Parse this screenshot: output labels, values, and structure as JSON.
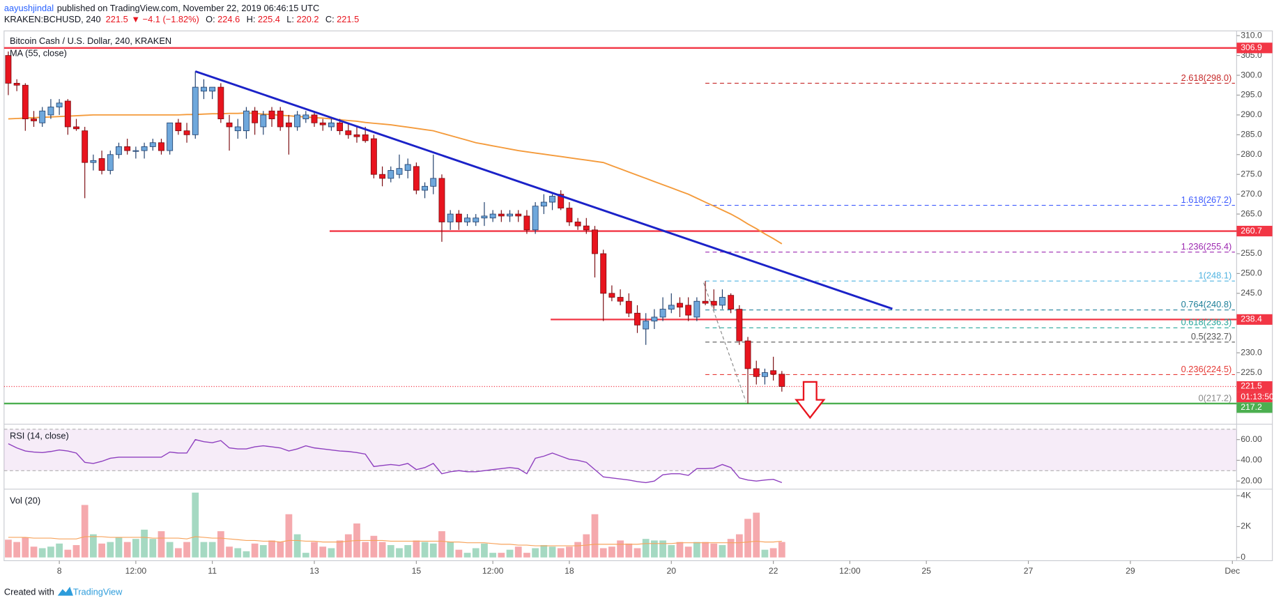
{
  "chart_data": {
    "type": "candlestick",
    "header": {
      "author": "aayushjindal",
      "published": "published on TradingView.com, November 22, 2019 06:46:15 UTC",
      "symbol": "KRAKEN:BCHUSD, 240",
      "last": 221.5,
      "arrow": "▼",
      "change": "−4.1 (−1.82%)",
      "ohlc": [
        {
          "label": "O:",
          "value": 224.6
        },
        {
          "label": "H:",
          "value": 225.4
        },
        {
          "label": "L:",
          "value": 220.2
        },
        {
          "label": "C:",
          "value": 221.5
        }
      ]
    },
    "title": "Bitcoin Cash / U.S. Dollar, 240, KRAKEN",
    "footer": {
      "created": "Created with",
      "brand": "TradingView"
    },
    "xlim": [
      -0.5,
      144.5
    ],
    "xticks": [
      {
        "value": 6,
        "label": "8"
      },
      {
        "value": 15,
        "label": "12:00"
      },
      {
        "value": 24,
        "label": "11"
      },
      {
        "value": 36,
        "label": "13"
      },
      {
        "value": 48,
        "label": "15"
      },
      {
        "value": 57,
        "label": "12:00"
      },
      {
        "value": 66,
        "label": "18"
      },
      {
        "value": 78,
        "label": "20"
      },
      {
        "value": 90,
        "label": "22"
      },
      {
        "value": 99,
        "label": "12:00"
      },
      {
        "value": 108,
        "label": "25"
      },
      {
        "value": 120,
        "label": "27"
      },
      {
        "value": 132,
        "label": "29"
      },
      {
        "value": 144,
        "label": "Dec"
      }
    ],
    "ylim": [
      212.4,
      311.2
    ],
    "yticks": [
      {
        "value": 310,
        "label": "310.0"
      },
      {
        "value": 305,
        "label": "305.0"
      },
      {
        "value": 300,
        "label": "300.0"
      },
      {
        "value": 295,
        "label": "295.0"
      },
      {
        "value": 290,
        "label": "290.0"
      },
      {
        "value": 285,
        "label": "285.0"
      },
      {
        "value": 280,
        "label": "280.0"
      },
      {
        "value": 275,
        "label": "275.0"
      },
      {
        "value": 270,
        "label": "270.0"
      },
      {
        "value": 265,
        "label": "265.0"
      },
      {
        "value": 255,
        "label": "255.0"
      },
      {
        "value": 250,
        "label": "250.0"
      },
      {
        "value": 245,
        "label": "245.0"
      },
      {
        "value": 230,
        "label": "230.0"
      },
      {
        "value": 225,
        "label": "225.0"
      }
    ],
    "grid": false,
    "up_color": "#6fa8dc",
    "down_color": "#e8141e",
    "candles": {
      "open": [
        305,
        298,
        297.5,
        289,
        288,
        290,
        292,
        293.5,
        287,
        286,
        278,
        279,
        276,
        280,
        282,
        281,
        281,
        282,
        283,
        281,
        288,
        286,
        285,
        296,
        296,
        297,
        288,
        286,
        286,
        291,
        287,
        291,
        291,
        288,
        287,
        289,
        290,
        288,
        287,
        288,
        286,
        285,
        285,
        284,
        275,
        274,
        275,
        276,
        277,
        271,
        272,
        274,
        263,
        265,
        263,
        263,
        264,
        264,
        265,
        264.5,
        265,
        264.5,
        261,
        267,
        268,
        270,
        266.5,
        263,
        262,
        261,
        255,
        245,
        244,
        243,
        240,
        236,
        238,
        239,
        241,
        242.5,
        242,
        239,
        243,
        243,
        242,
        244.5,
        241,
        233,
        226,
        224,
        225.5,
        224.6
      ],
      "high": [
        306,
        299,
        298,
        291,
        292,
        294,
        294,
        294,
        289,
        287,
        280,
        281,
        281,
        283,
        284,
        282,
        283,
        284,
        284,
        288,
        289,
        288,
        301,
        299,
        297,
        298,
        290,
        289,
        292,
        292,
        291,
        292,
        292,
        290,
        291,
        291,
        291,
        289,
        289,
        289,
        288,
        287,
        287,
        285,
        277,
        277,
        280,
        279,
        278,
        273,
        280,
        275,
        266,
        266,
        265,
        265,
        268,
        266,
        266,
        266,
        266,
        266,
        268,
        270,
        270,
        271,
        268,
        264,
        264,
        262,
        256,
        247,
        246,
        245,
        242,
        240,
        241,
        244,
        245,
        244,
        244,
        244,
        248.1,
        246,
        246,
        245,
        242,
        234,
        228,
        226,
        229,
        225.4
      ],
      "low": [
        295,
        296,
        286,
        287,
        287,
        289,
        290,
        285,
        286,
        269,
        276,
        275,
        275,
        279,
        280,
        279,
        279,
        281,
        280,
        280,
        285,
        283,
        284,
        294,
        294,
        288,
        281,
        284,
        284,
        285,
        285,
        287,
        286,
        280,
        286,
        288,
        287,
        286,
        286,
        285,
        284,
        283,
        283,
        274,
        272,
        273,
        274,
        274,
        270,
        269,
        270,
        258,
        261,
        261,
        262,
        262,
        262,
        263,
        263,
        263,
        263,
        260,
        260,
        265,
        266,
        266,
        262,
        261,
        260,
        249,
        238,
        243,
        242,
        239,
        235,
        232,
        236,
        238,
        240,
        239,
        238,
        238,
        242,
        241,
        241,
        240,
        232,
        217.2,
        222,
        222,
        223,
        220.2
      ],
      "close": [
        298,
        297.5,
        289,
        288.5,
        291,
        292,
        293,
        287,
        286.5,
        278,
        278.5,
        276,
        280,
        282,
        281,
        281,
        282,
        283,
        281,
        288,
        286,
        285,
        297,
        297,
        297,
        289,
        287,
        287,
        291,
        288,
        290,
        289,
        287,
        287,
        290,
        290,
        288,
        287.5,
        288,
        286,
        285,
        284.5,
        283.5,
        275,
        274,
        276,
        276.5,
        277.5,
        271,
        272,
        274,
        263,
        265,
        263,
        264,
        264,
        264.5,
        265,
        264.5,
        265,
        264.5,
        261,
        267,
        268,
        269.5,
        266.5,
        263,
        262,
        261,
        255,
        245,
        244,
        243,
        240,
        237,
        238,
        239,
        241,
        242,
        241.5,
        239.5,
        243,
        242.5,
        242,
        244,
        241,
        233,
        226,
        224,
        225,
        224.6,
        221.5
      ]
    },
    "ma": {
      "name": "MA (55, close)",
      "color": "#f49a3a",
      "values": [
        289,
        289.1,
        289.2,
        289.3,
        289.4,
        289.5,
        289.6,
        289.7,
        289.8,
        289.9,
        290,
        290,
        290,
        290,
        290,
        290,
        290,
        290,
        290,
        290,
        290,
        290.1,
        290.1,
        290.2,
        290.3,
        290.3,
        290.4,
        290.4,
        290.5,
        290.4,
        290.2,
        290.1,
        289.9,
        289.8,
        289.6,
        289.5,
        289.3,
        289.2,
        289,
        288.8,
        288.6,
        288.4,
        288.1,
        287.9,
        287.7,
        287.5,
        287.2,
        286.9,
        286.6,
        286.3,
        286,
        285.4,
        284.8,
        284.2,
        283.6,
        283,
        282.6,
        282.2,
        281.8,
        281.4,
        281,
        280.7,
        280.4,
        280.1,
        279.8,
        279.5,
        279.2,
        278.9,
        278.6,
        278.3,
        278,
        277.2,
        276.4,
        275.6,
        274.8,
        274,
        273.2,
        272.4,
        271.6,
        270.8,
        270,
        269,
        268,
        267,
        266,
        265,
        263.8,
        262.5,
        261.3,
        260,
        258.8,
        257.5
      ]
    },
    "trendline": {
      "color": "#1b22c8",
      "x": [
        22,
        104
      ],
      "y": [
        301.0,
        241.1
      ]
    },
    "levels": [
      {
        "value": 306.9,
        "color": "#f23645",
        "x": -0.5
      },
      {
        "value": 260.7,
        "color": "#f23645",
        "x": 37.8
      },
      {
        "value": 238.4,
        "color": "#f23645",
        "x": 63.8
      },
      {
        "value": 217.2,
        "color": "#4caf50",
        "x": -0.5
      }
    ],
    "current_price": {
      "value": 221.5,
      "color": "#f23645",
      "countdown": "01:13:50"
    },
    "fib": {
      "x": [
        82,
        144.3
      ],
      "levels": [
        {
          "label": "2.618(298.0)",
          "value": 298.0,
          "color": "#c62828"
        },
        {
          "label": "1.618(267.2)",
          "value": 267.2,
          "color": "#3d5afe"
        },
        {
          "label": "1.236(255.4)",
          "value": 255.4,
          "color": "#9c27b0"
        },
        {
          "label": "1(248.1)",
          "value": 248.1,
          "color": "#4fb3e0"
        },
        {
          "label": "0.764(240.8)",
          "value": 240.8,
          "color": "#1e7f99"
        },
        {
          "label": "0.618(236.3)",
          "value": 236.3,
          "color": "#26a69a"
        },
        {
          "label": "0.5(232.7)",
          "value": 232.7,
          "color": "#555555"
        },
        {
          "label": "0.236(224.5)",
          "value": 224.5,
          "color": "#e53935"
        },
        {
          "label": "0(217.2)",
          "value": 217.2,
          "color": "#888888"
        }
      ]
    },
    "rsi": {
      "name": "RSI (14, close)",
      "color": "#8e3fbf",
      "ylim": [
        13.7,
        73.3
      ],
      "band": [
        30,
        70
      ],
      "yticks": [
        {
          "value": 60,
          "label": "60.00"
        },
        {
          "value": 40,
          "label": "40.00"
        },
        {
          "value": 20,
          "label": "20.00"
        }
      ],
      "values": [
        56,
        52,
        49,
        48,
        47.5,
        48.5,
        50,
        49,
        47,
        38,
        37,
        39,
        42,
        43,
        43,
        43,
        43,
        43,
        43,
        48,
        47,
        47,
        60,
        58,
        57,
        59,
        52,
        51,
        51,
        53,
        54,
        53,
        52,
        49,
        51,
        54,
        52,
        51,
        50,
        49,
        48.5,
        47.5,
        46,
        34,
        35,
        36,
        35,
        37,
        31,
        33,
        37,
        27,
        29,
        30,
        29,
        29,
        30,
        31,
        32,
        33,
        32,
        27,
        42,
        44,
        47,
        44,
        41,
        40,
        38,
        31,
        24,
        23,
        22,
        21,
        19.5,
        18.5,
        20,
        26,
        27,
        27,
        25.5,
        32,
        32,
        32.5,
        36,
        33,
        23,
        21,
        20,
        21,
        21.6,
        18.5
      ]
    },
    "volume": {
      "name": "Vol (20)",
      "ylim": [
        -158,
        4316
      ],
      "up_color": "#a5d9c2",
      "down_color": "#f5a9ad",
      "ma_color": "#f7a35c",
      "yticks": [
        {
          "value": 4000,
          "label": "4K"
        },
        {
          "value": 2000,
          "label": "2K"
        },
        0
      ],
      "values": [
        1150,
        1000,
        1300,
        700,
        600,
        700,
        900,
        500,
        800,
        3400,
        1500,
        900,
        1000,
        1300,
        1000,
        1200,
        1800,
        1200,
        1700,
        1000,
        600,
        1000,
        4200,
        1000,
        1000,
        1700,
        700,
        600,
        400,
        900,
        800,
        1100,
        1000,
        2800,
        1500,
        300,
        1000,
        700,
        600,
        1100,
        1500,
        2200,
        1000,
        1400,
        1000,
        800,
        600,
        800,
        1100,
        1000,
        900,
        1700,
        1000,
        500,
        300,
        600,
        900,
        300,
        300,
        500,
        700,
        300,
        600,
        800,
        700,
        600,
        700,
        1000,
        1500,
        2800,
        600,
        700,
        1100,
        900,
        600,
        1200,
        1100,
        1100,
        800,
        1000,
        700,
        1000,
        1000,
        900,
        800,
        1200,
        1500,
        2500,
        2900,
        500,
        600,
        1000
      ],
      "ma_values": [
        1300,
        1300,
        1300,
        1250,
        1250,
        1250,
        1200,
        1200,
        1200,
        1350,
        1350,
        1350,
        1300,
        1300,
        1300,
        1300,
        1300,
        1250,
        1250,
        1250,
        1250,
        1200,
        1350,
        1300,
        1250,
        1250,
        1200,
        1150,
        1100,
        1100,
        1050,
        1050,
        1000,
        1100,
        1100,
        1050,
        1050,
        1000,
        1000,
        1000,
        1050,
        1100,
        1100,
        1100,
        1100,
        1050,
        1050,
        1050,
        1050,
        1050,
        1050,
        1050,
        1000,
        1000,
        950,
        950,
        950,
        900,
        850,
        850,
        800,
        800,
        750,
        750,
        750,
        750,
        750,
        750,
        800,
        850,
        850,
        850,
        850,
        850,
        850,
        900,
        900,
        900,
        900,
        950,
        950,
        950,
        950,
        950,
        950,
        950,
        950,
        1000,
        1050,
        1000,
        1000,
        1050
      ]
    }
  }
}
